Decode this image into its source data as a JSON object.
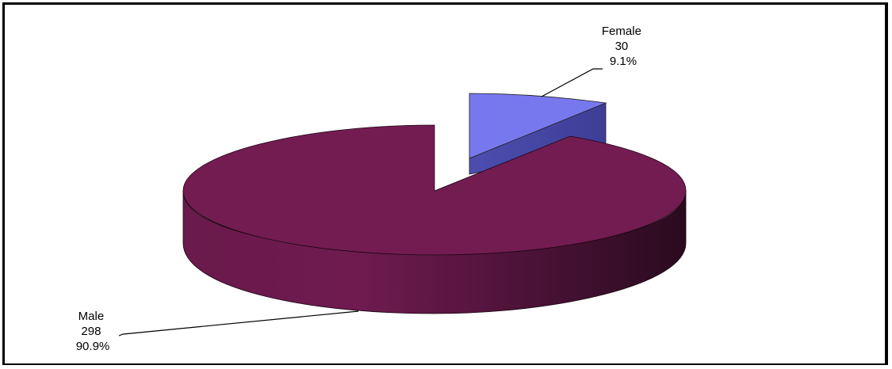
{
  "chart_data": {
    "type": "pie",
    "title": "",
    "slices": [
      {
        "label": "Male",
        "value": 298,
        "percent": "90.9%",
        "color": "#731C52"
      },
      {
        "label": "Female",
        "value": 30,
        "percent": "9.1%",
        "color": "#7878EE"
      }
    ],
    "legend": "none"
  }
}
